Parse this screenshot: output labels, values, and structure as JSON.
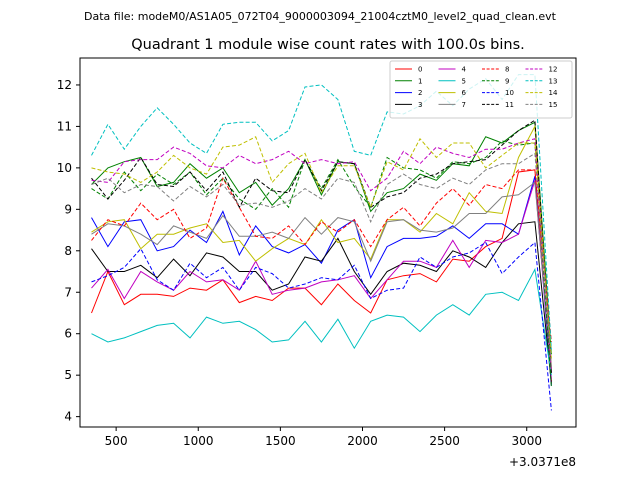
{
  "header": {
    "suptitle": "Data file: modeM0/AS1A05_072T04_9000003094_21004cztM0_level2_quad_clean.evt"
  },
  "chart_data": {
    "type": "line",
    "title": "Quadrant 1 module wise count rates with 100.0s bins.",
    "xlabel": "",
    "ylabel": "",
    "x_offset_label": "+3.0371e8",
    "xlim": [
      280,
      3300
    ],
    "ylim": [
      3.75,
      12.65
    ],
    "xticks": [
      500,
      1000,
      1500,
      2000,
      2500,
      3000
    ],
    "xtick_labels": [
      "500",
      "1000",
      "1500",
      "2000",
      "2500",
      "3000"
    ],
    "yticks": [
      4,
      5,
      6,
      7,
      8,
      9,
      10,
      11,
      12
    ],
    "ytick_labels": [
      "4",
      "5",
      "6",
      "7",
      "8",
      "9",
      "10",
      "11",
      "12"
    ],
    "grid": false,
    "legend_position": "top-right",
    "legend_columns": 4,
    "x": [
      350,
      450,
      550,
      650,
      750,
      850,
      950,
      1050,
      1150,
      1250,
      1350,
      1450,
      1550,
      1650,
      1750,
      1850,
      1950,
      2050,
      2150,
      2250,
      2350,
      2450,
      2550,
      2650,
      2750,
      2850,
      2950,
      3050,
      3150
    ],
    "series": [
      {
        "name": "0",
        "color": "#ff0000",
        "dash": false,
        "values": [
          6.5,
          7.5,
          6.7,
          6.95,
          6.95,
          6.9,
          7.1,
          7.05,
          7.3,
          6.75,
          6.9,
          6.8,
          7.1,
          7.1,
          6.7,
          7.2,
          6.8,
          6.5,
          7.3,
          7.4,
          7.45,
          7.25,
          7.8,
          7.75,
          8.1,
          8.3,
          9.9,
          9.95,
          4.85
        ]
      },
      {
        "name": "1",
        "color": "#008000",
        "dash": false,
        "values": [
          9.6,
          10.0,
          10.15,
          10.25,
          9.55,
          9.65,
          10.1,
          9.75,
          10.0,
          9.4,
          9.65,
          9.1,
          9.5,
          10.2,
          9.35,
          10.15,
          10.1,
          8.95,
          9.4,
          9.5,
          9.85,
          9.7,
          10.1,
          10.05,
          10.75,
          10.6,
          10.9,
          11.1,
          5.5
        ]
      },
      {
        "name": "2",
        "color": "#0000ff",
        "dash": false,
        "values": [
          8.8,
          8.1,
          8.7,
          8.75,
          8.0,
          8.1,
          8.5,
          8.2,
          8.95,
          7.9,
          8.6,
          8.1,
          7.95,
          8.15,
          7.7,
          8.5,
          8.75,
          7.35,
          8.1,
          8.3,
          8.3,
          8.35,
          8.6,
          8.3,
          8.65,
          8.65,
          8.4,
          9.8,
          4.75
        ]
      },
      {
        "name": "3",
        "color": "#000000",
        "dash": false,
        "values": [
          8.05,
          7.5,
          7.5,
          7.65,
          7.35,
          7.8,
          7.4,
          7.95,
          7.85,
          7.5,
          7.5,
          7.05,
          7.2,
          7.85,
          7.75,
          8.3,
          7.5,
          6.95,
          7.5,
          7.7,
          7.65,
          7.5,
          8.0,
          7.85,
          7.6,
          8.2,
          8.65,
          8.7,
          4.8
        ]
      },
      {
        "name": "4",
        "color": "#c000c0",
        "dash": false,
        "values": [
          7.1,
          7.55,
          6.85,
          7.5,
          7.25,
          7.05,
          7.5,
          7.25,
          7.3,
          7.05,
          7.75,
          6.95,
          7.05,
          7.1,
          7.25,
          7.3,
          7.4,
          6.85,
          7.3,
          7.75,
          7.75,
          7.6,
          8.25,
          7.6,
          8.25,
          8.2,
          8.4,
          9.7,
          4.9
        ]
      },
      {
        "name": "5",
        "color": "#00c0c0",
        "dash": false,
        "values": [
          6.0,
          5.8,
          5.9,
          6.05,
          6.2,
          6.25,
          5.9,
          6.4,
          6.25,
          6.3,
          6.1,
          5.8,
          5.85,
          6.3,
          5.8,
          6.35,
          5.65,
          6.3,
          6.45,
          6.4,
          6.05,
          6.45,
          6.7,
          6.45,
          6.95,
          7.0,
          6.8,
          7.55,
          5.0
        ]
      },
      {
        "name": "6",
        "color": "#bfbf00",
        "dash": false,
        "values": [
          8.45,
          8.7,
          8.75,
          8.05,
          8.4,
          8.4,
          8.55,
          8.65,
          8.2,
          8.25,
          7.75,
          8.05,
          8.3,
          8.15,
          8.75,
          8.2,
          8.3,
          7.8,
          8.75,
          8.75,
          8.45,
          8.9,
          8.65,
          9.4,
          8.95,
          8.9,
          10.25,
          11.0,
          5.15
        ]
      },
      {
        "name": "7",
        "color": "#808080",
        "dash": false,
        "values": [
          8.4,
          8.65,
          8.6,
          8.4,
          8.15,
          8.6,
          8.45,
          8.3,
          8.85,
          8.35,
          8.35,
          8.45,
          8.3,
          8.8,
          8.4,
          8.8,
          8.7,
          7.75,
          8.7,
          8.75,
          8.5,
          8.45,
          8.55,
          8.9,
          8.9,
          9.3,
          9.35,
          9.65,
          5.05
        ]
      },
      {
        "name": "8",
        "color": "#ff0000",
        "dash": true,
        "values": [
          8.25,
          8.75,
          8.6,
          9.15,
          8.75,
          9.0,
          8.3,
          8.55,
          9.75,
          9.05,
          8.35,
          8.3,
          8.6,
          8.15,
          8.7,
          8.45,
          8.75,
          8.1,
          8.75,
          9.05,
          8.6,
          9.15,
          9.5,
          9.1,
          9.6,
          9.5,
          9.95,
          9.95,
          5.8
        ]
      },
      {
        "name": "9",
        "color": "#008000",
        "dash": true,
        "values": [
          9.5,
          9.25,
          9.9,
          9.45,
          9.85,
          9.6,
          9.9,
          9.35,
          9.75,
          9.25,
          9.0,
          9.5,
          9.05,
          10.2,
          9.5,
          10.2,
          9.55,
          9.05,
          10.25,
          10.0,
          9.95,
          9.75,
          10.15,
          10.1,
          10.25,
          10.65,
          10.55,
          10.6,
          4.7
        ]
      },
      {
        "name": "10",
        "color": "#0000ff",
        "dash": true,
        "values": [
          7.25,
          7.4,
          7.6,
          8.05,
          7.3,
          7.05,
          7.7,
          7.35,
          7.6,
          7.05,
          7.6,
          7.45,
          7.1,
          7.2,
          7.35,
          7.3,
          7.65,
          6.85,
          7.05,
          7.1,
          7.85,
          7.6,
          7.85,
          7.95,
          8.2,
          7.45,
          7.85,
          8.2,
          4.15
        ]
      },
      {
        "name": "11",
        "color": "#000000",
        "dash": true,
        "values": [
          9.75,
          9.25,
          9.7,
          10.25,
          9.6,
          9.55,
          9.9,
          9.45,
          9.9,
          9.05,
          9.75,
          9.45,
          9.4,
          10.2,
          9.45,
          10.15,
          10.1,
          9.05,
          9.3,
          9.4,
          9.75,
          9.85,
          10.1,
          10.15,
          10.2,
          10.55,
          10.9,
          11.15,
          5.05
        ]
      },
      {
        "name": "12",
        "color": "#c000c0",
        "dash": true,
        "values": [
          9.7,
          9.65,
          10.15,
          10.2,
          10.2,
          10.5,
          10.35,
          10.05,
          10.0,
          10.3,
          10.1,
          10.2,
          10.4,
          10.1,
          10.2,
          10.1,
          10.15,
          9.45,
          9.75,
          10.4,
          10.1,
          10.5,
          10.35,
          10.25,
          10.45,
          10.45,
          10.6,
          10.7,
          5.15
        ]
      },
      {
        "name": "13",
        "color": "#00c0c0",
        "dash": true,
        "values": [
          10.3,
          11.05,
          10.45,
          11.0,
          11.45,
          11.05,
          10.6,
          10.35,
          11.05,
          11.1,
          11.1,
          10.65,
          10.9,
          11.95,
          12.0,
          11.65,
          10.4,
          10.3,
          11.35,
          11.3,
          11.5,
          11.85,
          11.5,
          11.9,
          12.15,
          11.65,
          12.25,
          12.25,
          5.6
        ]
      },
      {
        "name": "14",
        "color": "#bfbf00",
        "dash": true,
        "values": [
          10.0,
          9.9,
          9.85,
          9.65,
          9.9,
          10.3,
          10.0,
          9.85,
          10.5,
          10.55,
          10.75,
          9.65,
          10.1,
          10.35,
          9.4,
          10.05,
          10.05,
          9.05,
          10.15,
          9.95,
          10.7,
          10.25,
          10.6,
          10.6,
          10.0,
          10.3,
          10.6,
          10.6,
          5.4
        ]
      },
      {
        "name": "15",
        "color": "#808080",
        "dash": true,
        "values": [
          9.6,
          9.75,
          9.4,
          9.6,
          9.55,
          9.2,
          9.55,
          9.3,
          9.6,
          9.1,
          9.15,
          9.05,
          9.2,
          9.5,
          9.25,
          9.75,
          9.65,
          8.7,
          9.6,
          9.85,
          9.6,
          9.5,
          9.75,
          9.6,
          9.95,
          10.1,
          10.1,
          10.35,
          5.2
        ]
      }
    ]
  }
}
